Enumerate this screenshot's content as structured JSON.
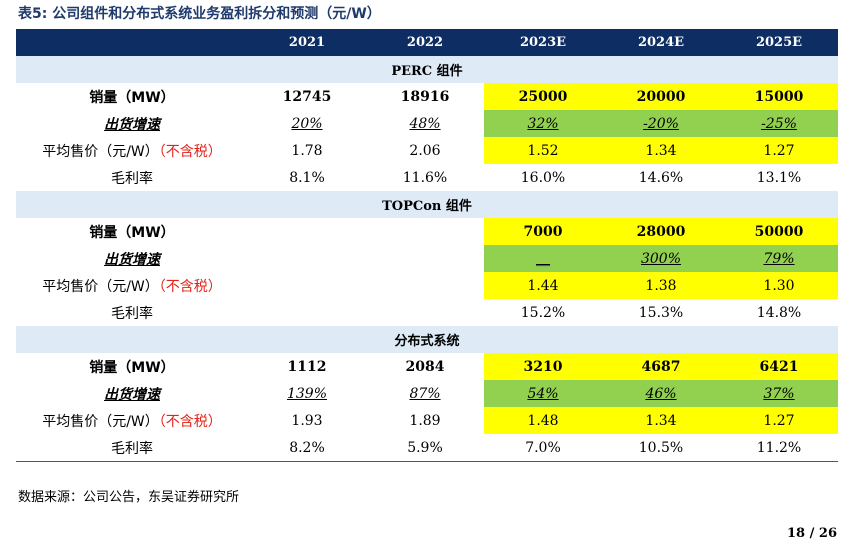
{
  "caption": "表5:  公司组件和分布式系统业务盈利拆分和预测（元/W）",
  "years": [
    "2021",
    "2022",
    "2023E",
    "2024E",
    "2025E"
  ],
  "labels": {
    "sales": "销量（MW）",
    "growth": "出货增速",
    "price_main": "平均售价（元/W）",
    "price_note": "（不含税）",
    "margin": "毛利率"
  },
  "sections": [
    {
      "title": "PERC 组件",
      "sales": [
        "12745",
        "18916",
        "25000",
        "20000",
        "15000"
      ],
      "growth": [
        "20%",
        "48%",
        "32%",
        "-20%",
        "-25%"
      ],
      "price": [
        "1.78",
        "2.06",
        "1.52",
        "1.34",
        "1.27"
      ],
      "margin": [
        "8.1%",
        "11.6%",
        "16.0%",
        "14.6%",
        "13.1%"
      ]
    },
    {
      "title": "TOPCon 组件",
      "sales": [
        "",
        "",
        "7000",
        "28000",
        "50000"
      ],
      "growth": [
        "",
        "",
        "__",
        "300%",
        "79%"
      ],
      "price": [
        "",
        "",
        "1.44",
        "1.38",
        "1.30"
      ],
      "margin": [
        "",
        "",
        "15.2%",
        "15.3%",
        "14.8%"
      ]
    },
    {
      "title": "分布式系统",
      "sales": [
        "1112",
        "2084",
        "3210",
        "4687",
        "6421"
      ],
      "growth": [
        "139%",
        "87%",
        "54%",
        "46%",
        "37%"
      ],
      "price": [
        "1.93",
        "1.89",
        "1.48",
        "1.34",
        "1.27"
      ],
      "margin": [
        "8.2%",
        "5.9%",
        "7.0%",
        "10.5%",
        "11.2%"
      ]
    }
  ],
  "source": "数据来源：公司公告，东吴证券研究所",
  "page_number": "18 / 26",
  "colors": {
    "header": "#0e2e63",
    "section": "#deeaf6",
    "forecast_yellow": "#ffff00",
    "forecast_green": "#92d050"
  }
}
